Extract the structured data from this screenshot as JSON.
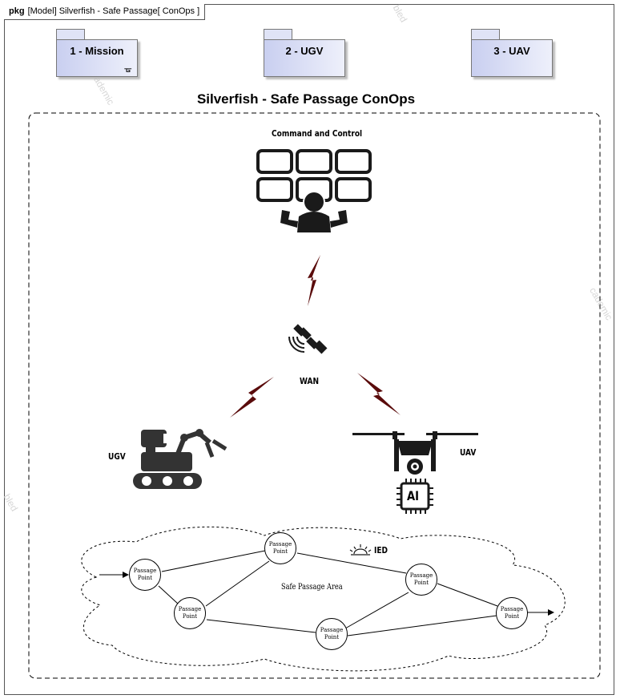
{
  "frame": {
    "keyword": "pkg",
    "heading": "[Model] Silverfish - Safe Passage[  ConOps  ]"
  },
  "packages": [
    {
      "label": "1 - Mission",
      "icon": "tree-hierarchy-icon"
    },
    {
      "label": "2 - UGV"
    },
    {
      "label": "3 - UAV"
    }
  ],
  "diagram": {
    "title": "Silverfish - Safe Passage ConOps",
    "command_label": "Command and Control",
    "wan_label": "WAN",
    "ugv_label": "UGV",
    "uav_label": "UAV",
    "ai_chip_text": "AI",
    "ied_label": "IED",
    "area_label": "Safe Passage Area",
    "passage_points": [
      {
        "label": "Passage Point"
      },
      {
        "label": "Passage Point"
      },
      {
        "label": "Passage Point"
      },
      {
        "label": "Passage Point"
      },
      {
        "label": "Passage Point"
      },
      {
        "label": "Passage Point"
      }
    ]
  },
  "colors": {
    "lightning": "#5a0b0b",
    "package_fill": "#c9cff0",
    "icon": "#222222"
  }
}
